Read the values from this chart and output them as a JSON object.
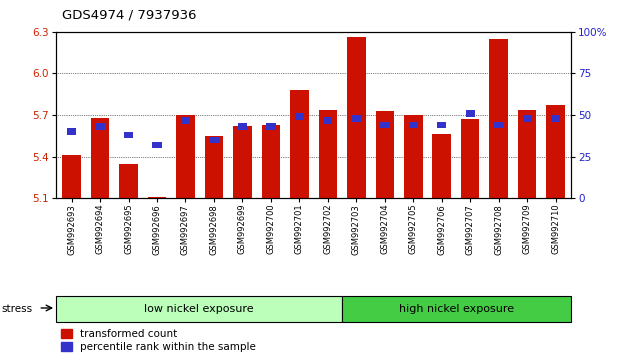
{
  "title": "GDS4974 / 7937936",
  "samples": [
    "GSM992693",
    "GSM992694",
    "GSM992695",
    "GSM992696",
    "GSM992697",
    "GSM992698",
    "GSM992699",
    "GSM992700",
    "GSM992701",
    "GSM992702",
    "GSM992703",
    "GSM992704",
    "GSM992705",
    "GSM992706",
    "GSM992707",
    "GSM992708",
    "GSM992709",
    "GSM992710"
  ],
  "red_values": [
    5.41,
    5.68,
    5.35,
    5.11,
    5.7,
    5.55,
    5.62,
    5.63,
    5.88,
    5.74,
    6.26,
    5.73,
    5.7,
    5.56,
    5.67,
    6.25,
    5.74,
    5.77
  ],
  "blue_values": [
    40,
    43,
    38,
    32,
    47,
    35,
    43,
    43,
    49,
    47,
    48,
    44,
    44,
    44,
    51,
    44,
    48,
    48
  ],
  "ylim_left": [
    5.1,
    6.3
  ],
  "ylim_right": [
    0,
    100
  ],
  "yticks_left": [
    5.1,
    5.4,
    5.7,
    6.0,
    6.3
  ],
  "yticks_right": [
    0,
    25,
    50,
    75,
    100
  ],
  "group1_label": "low nickel exposure",
  "group2_label": "high nickel exposure",
  "group1_count": 10,
  "stress_label": "stress",
  "legend1": "transformed count",
  "legend2": "percentile rank within the sample",
  "bar_color": "#cc1100",
  "blue_color": "#3333cc",
  "bg_color": "#ffffff",
  "group_bg1": "#bbffbb",
  "group_bg2": "#44cc44",
  "tick_label_color_left": "#cc2200",
  "tick_label_color_right": "#2222cc",
  "bar_width": 0.65
}
